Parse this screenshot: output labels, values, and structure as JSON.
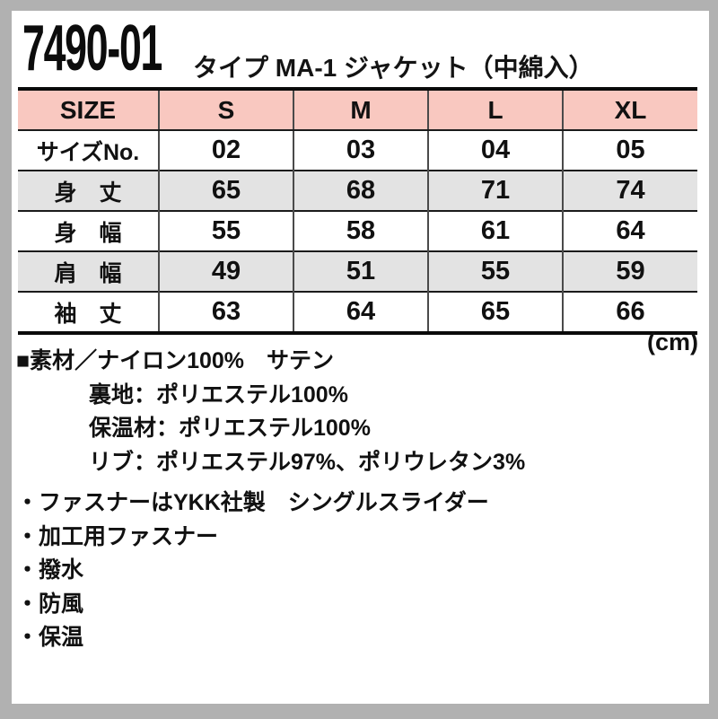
{
  "header": {
    "product_code": "7490-01",
    "product_name": "タイプ MA-1 ジャケット（中綿入）"
  },
  "size_table": {
    "columns": [
      "SIZE",
      "S",
      "M",
      "L",
      "XL"
    ],
    "rows": [
      {
        "label": "サイズNo.",
        "values": [
          "02",
          "03",
          "04",
          "05"
        ]
      },
      {
        "label": "身　丈",
        "values": [
          "65",
          "68",
          "71",
          "74"
        ]
      },
      {
        "label": "身　幅",
        "values": [
          "55",
          "58",
          "61",
          "64"
        ]
      },
      {
        "label": "肩　幅",
        "values": [
          "49",
          "51",
          "55",
          "59"
        ]
      },
      {
        "label": "袖　丈",
        "values": [
          "63",
          "64",
          "65",
          "66"
        ]
      }
    ],
    "unit_label": "(cm)"
  },
  "material": {
    "lines": [
      "■素材／ナイロン100%　サテン",
      "裏地：ポリエステル100%",
      "保温材：ポリエステル100%",
      "リブ：ポリエステル97%、ポリウレタン3%"
    ]
  },
  "features": {
    "items": [
      "・ファスナーはYKK社製　シングルスライダー",
      "・加工用ファスナー",
      "・撥水",
      "・防風",
      "・保温"
    ]
  },
  "colors": {
    "header_pink": "#f9c8c0",
    "row_gray": "#e3e3e3",
    "frame_gray": "#b1b1b1",
    "line_black": "#0a0a0a"
  }
}
